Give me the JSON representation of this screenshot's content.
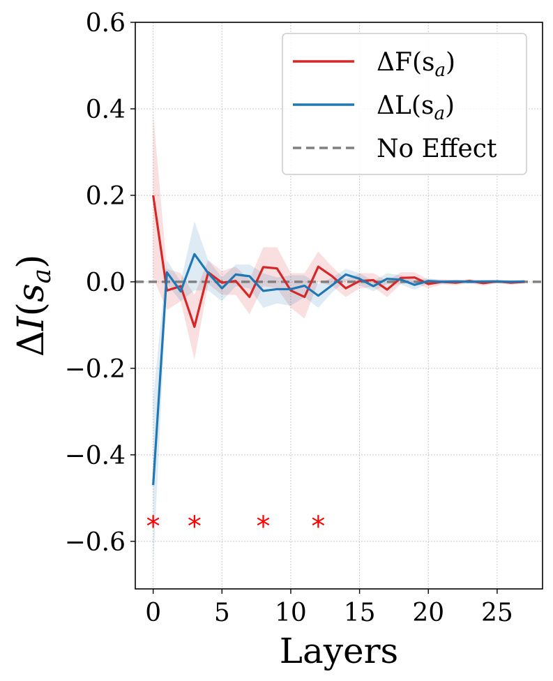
{
  "chart_data": {
    "type": "line",
    "title": "",
    "xlabel": "Layers",
    "ylabel": "ΔI(s_a)",
    "xlim": [
      -1.3,
      28.3
    ],
    "ylim": [
      -0.71,
      0.6
    ],
    "xticks": [
      0,
      5,
      10,
      15,
      20,
      25
    ],
    "yticks": [
      0.6,
      0.4,
      0.2,
      0.0,
      -0.2,
      -0.4,
      -0.6
    ],
    "xtick_labels": [
      "0",
      "5",
      "10",
      "15",
      "20",
      "25"
    ],
    "ytick_labels": [
      "0.6",
      "0.4",
      "0.2",
      "0.0",
      "−0.2",
      "−0.4",
      "−0.6"
    ],
    "grid": true,
    "legend_position": "top-right",
    "x": [
      0,
      1,
      2,
      3,
      4,
      5,
      6,
      7,
      8,
      9,
      10,
      11,
      12,
      13,
      14,
      15,
      16,
      17,
      18,
      19,
      20,
      21,
      22,
      23,
      24,
      25,
      26,
      27
    ],
    "series": [
      {
        "name": "ΔF(s_a)",
        "color": "#d62728",
        "values": [
          0.2,
          -0.02,
          -0.01,
          -0.104,
          0.022,
          -0.002,
          0.002,
          -0.035,
          0.034,
          0.031,
          -0.02,
          -0.035,
          0.035,
          0.013,
          -0.015,
          0.002,
          0.004,
          -0.018,
          0.009,
          0.01,
          -0.005,
          0.0,
          -0.002,
          0.002,
          -0.003,
          0.001,
          -0.002,
          0.0
        ],
        "band_upper": [
          0.39,
          0.03,
          0.02,
          -0.03,
          0.05,
          0.025,
          0.035,
          0.005,
          0.08,
          0.08,
          0.02,
          0.02,
          0.07,
          0.035,
          0.005,
          0.02,
          0.02,
          0.002,
          0.022,
          0.022,
          0.005,
          0.006,
          0.004,
          0.006,
          0.003,
          0.005,
          0.003,
          0.004
        ],
        "band_lower": [
          0.01,
          -0.065,
          -0.045,
          -0.18,
          -0.005,
          -0.03,
          -0.03,
          -0.075,
          -0.01,
          -0.015,
          -0.06,
          -0.085,
          0.0,
          -0.01,
          -0.035,
          -0.015,
          -0.012,
          -0.035,
          -0.005,
          -0.002,
          -0.015,
          -0.006,
          -0.008,
          -0.003,
          -0.009,
          -0.003,
          -0.007,
          -0.004
        ]
      },
      {
        "name": "ΔL(s_a)",
        "color": "#1f77b4",
        "values": [
          -0.47,
          0.022,
          -0.022,
          0.064,
          0.02,
          -0.015,
          0.017,
          0.013,
          -0.021,
          -0.017,
          -0.017,
          -0.009,
          -0.032,
          -0.008,
          0.017,
          0.007,
          -0.01,
          0.007,
          0.005,
          -0.007,
          0.002,
          0.0,
          0.001,
          0.0,
          0.001,
          0.001,
          0.0,
          0.001
        ],
        "band_upper": [
          -0.27,
          0.05,
          0.0,
          0.14,
          0.05,
          0.01,
          0.04,
          0.04,
          0.02,
          0.01,
          0.015,
          0.015,
          -0.005,
          0.01,
          0.03,
          0.02,
          0.002,
          0.02,
          0.015,
          0.005,
          0.008,
          0.004,
          0.005,
          0.004,
          0.004,
          0.004,
          0.003,
          0.004
        ],
        "band_lower": [
          -0.66,
          -0.005,
          -0.045,
          -0.02,
          -0.02,
          -0.045,
          -0.01,
          -0.015,
          -0.06,
          -0.05,
          -0.055,
          -0.035,
          -0.06,
          -0.025,
          0.003,
          -0.008,
          -0.022,
          -0.005,
          -0.006,
          -0.018,
          -0.004,
          -0.004,
          -0.003,
          -0.004,
          -0.002,
          -0.003,
          -0.003,
          -0.002
        ]
      }
    ],
    "reference_line": {
      "name": "No Effect",
      "y": 0.0,
      "color": "#808080",
      "style": "dashed"
    },
    "significance_markers": {
      "symbol": "*",
      "color": "#ff0000",
      "x": [
        0,
        3,
        8,
        12
      ],
      "y": -0.555
    },
    "legend": {
      "entries": [
        {
          "label_main": "ΔF(s",
          "label_sub": "a",
          "label_close": ")",
          "color": "#d62728",
          "style": "solid"
        },
        {
          "label_main": "ΔL(s",
          "label_sub": "a",
          "label_close": ")",
          "color": "#1f77b4",
          "style": "solid"
        },
        {
          "label_main": "No Effect",
          "label_sub": "",
          "label_close": "",
          "color": "#808080",
          "style": "dashed"
        }
      ]
    }
  }
}
